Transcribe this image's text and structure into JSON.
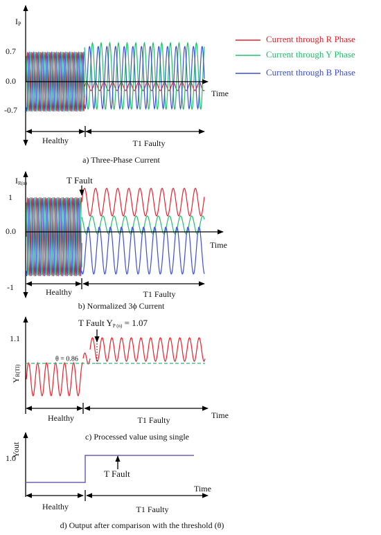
{
  "legend": [
    "Current through R Phase",
    "Current through Y Phase",
    "Current through B Phase"
  ],
  "panels": [
    {
      "y_label": {
        "main": "I",
        "sub": "P"
      },
      "ticks": [
        "0.7",
        "0.0",
        "-0.7"
      ],
      "x_label": "Time",
      "healthy": "Healthy",
      "faulty": "T1 Faulty",
      "caption": "a) Three-Phase Current"
    },
    {
      "y_label": {
        "main": "I",
        "sub": "R(n)"
      },
      "ticks": [
        "1",
        "0.0",
        "-1"
      ],
      "x_label": "Time",
      "annotation": "T  Fault",
      "healthy": "Healthy",
      "faulty": "T1 Faulty",
      "caption": "b) Normalized 3ϕ Current"
    },
    {
      "y_label": {
        "main": "Y",
        "sub": "R(TI)"
      },
      "ticks": [
        "1.1"
      ],
      "threshold": "θ = 0.86",
      "annotation": {
        "main": "T  Fault  Y",
        "sub": "P (n)",
        "rest": " = 1.07"
      },
      "x_label": "Time",
      "healthy": "Healthy",
      "faulty": "T1 Faulty",
      "caption": "c) Processed value using single"
    },
    {
      "y_label": "Yout",
      "ticks": [
        "1.0"
      ],
      "annotation": "T  Fault",
      "x_label": "Time",
      "healthy": "Healthy",
      "faulty": "T1 Faulty",
      "caption": "d) Output after comparison with the threshold (θ)"
    }
  ]
}
